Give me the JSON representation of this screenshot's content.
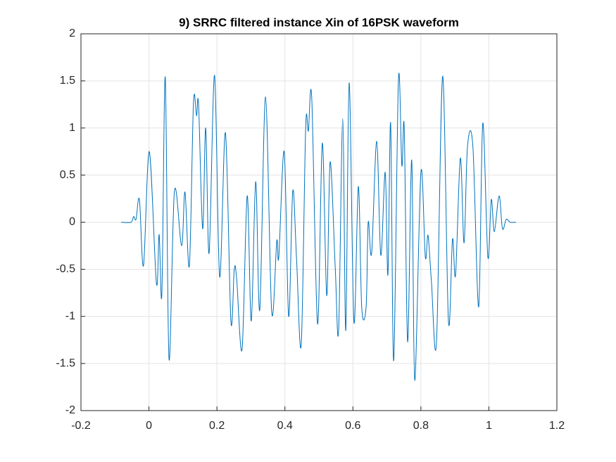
{
  "chart_data": {
    "type": "line",
    "title": "9) SRRC filtered instance Xin of 16PSK waveform",
    "x": [
      -0.082,
      -0.053,
      -0.045,
      -0.038,
      -0.028,
      -0.016,
      0.001,
      0.022,
      0.03,
      0.038,
      0.048,
      0.059,
      0.075,
      0.096,
      0.106,
      0.119,
      0.131,
      0.14,
      0.146,
      0.158,
      0.167,
      0.177,
      0.193,
      0.208,
      0.225,
      0.241,
      0.251,
      0.258,
      0.274,
      0.289,
      0.301,
      0.314,
      0.326,
      0.343,
      0.361,
      0.376,
      0.382,
      0.398,
      0.411,
      0.423,
      0.434,
      0.448,
      0.461,
      0.469,
      0.479,
      0.496,
      0.51,
      0.523,
      0.533,
      0.548,
      0.558,
      0.57,
      0.579,
      0.589,
      0.603,
      0.616,
      0.626,
      0.639,
      0.645,
      0.655,
      0.67,
      0.682,
      0.695,
      0.703,
      0.711,
      0.72,
      0.734,
      0.744,
      0.751,
      0.761,
      0.773,
      0.782,
      0.8,
      0.813,
      0.821,
      0.831,
      0.846,
      0.864,
      0.881,
      0.893,
      0.902,
      0.916,
      0.927,
      0.937,
      0.953,
      0.97,
      0.982,
      0.997,
      1.007,
      1.016,
      1.03,
      1.04,
      1.051,
      1.063,
      1.08
    ],
    "series": [
      {
        "name": "Xin",
        "color": "#0072bd",
        "values": [
          0,
          0,
          0.06,
          0.03,
          0.24,
          -0.46,
          0.75,
          -0.65,
          -0.13,
          -0.76,
          1.54,
          -1.45,
          0.33,
          -0.25,
          0.32,
          -0.46,
          1.27,
          1.13,
          1.25,
          -0.07,
          1.0,
          -0.33,
          1.56,
          -0.58,
          0.95,
          -1.05,
          -0.5,
          -0.6,
          -1.35,
          0.28,
          -1.05,
          0.43,
          -0.93,
          1.33,
          -0.95,
          -0.2,
          -0.37,
          0.75,
          -1.0,
          0.33,
          -0.37,
          -1.3,
          1.0,
          0.97,
          1.31,
          -1.08,
          0.84,
          -0.78,
          0.64,
          -0.48,
          -1.15,
          1.1,
          -1.15,
          1.48,
          -1.06,
          0.38,
          -0.91,
          -0.89,
          0.0,
          -0.33,
          0.86,
          -0.35,
          0.53,
          -0.56,
          1.05,
          -1.47,
          1.52,
          0.6,
          1.0,
          -1.27,
          0.66,
          -1.68,
          0.53,
          -0.37,
          -0.14,
          -0.63,
          -1.27,
          1.55,
          -1.05,
          -0.18,
          -0.56,
          0.68,
          -0.22,
          0.8,
          0.8,
          -0.9,
          1.05,
          -0.37,
          0.24,
          -0.1,
          0.28,
          -0.07,
          0.03,
          0,
          0
        ]
      }
    ],
    "xlim": [
      -0.2,
      1.2
    ],
    "xticks": [
      -0.2,
      0,
      0.2,
      0.4,
      0.6,
      0.8,
      1,
      1.2
    ],
    "ylim": [
      -2,
      2
    ],
    "yticks": [
      -2,
      -1.5,
      -1,
      -0.5,
      0,
      0.5,
      1,
      1.5,
      2
    ],
    "grid": true
  }
}
